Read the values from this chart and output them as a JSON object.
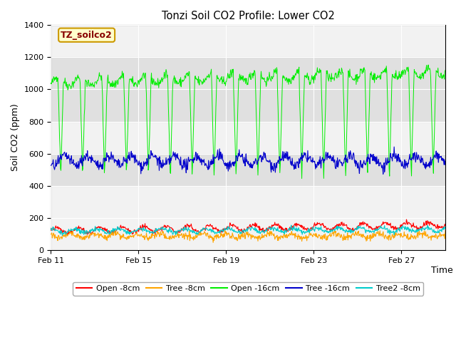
{
  "title": "Tonzi Soil CO2 Profile: Lower CO2",
  "xlabel": "Time",
  "ylabel": "Soil CO2 (ppm)",
  "ylim": [
    0,
    1400
  ],
  "yticks": [
    0,
    200,
    400,
    600,
    800,
    1000,
    1200,
    1400
  ],
  "xtick_labels": [
    "Feb 11",
    "Feb 15",
    "Feb 19",
    "Feb 23",
    "Feb 27"
  ],
  "xtick_positions": [
    0,
    4,
    8,
    12,
    16
  ],
  "series_colors": {
    "open_8cm": "#ff0000",
    "tree_8cm": "#ffa500",
    "open_16cm": "#00ee00",
    "tree_16cm": "#0000cc",
    "tree2_8cm": "#00cccc"
  },
  "series_labels": [
    "Open -8cm",
    "Tree -8cm",
    "Open -16cm",
    "Tree -16cm",
    "Tree2 -8cm"
  ],
  "legend_box_color": "#ffffcc",
  "legend_box_edge": "#cc9900",
  "label_box_text": "TZ_soilco2",
  "label_box_text_color": "#880000",
  "background_color": "#ffffff",
  "plot_bg_color": "#f2f2f2",
  "band_color": "#e0e0e0",
  "n_days": 18,
  "seed": 42
}
